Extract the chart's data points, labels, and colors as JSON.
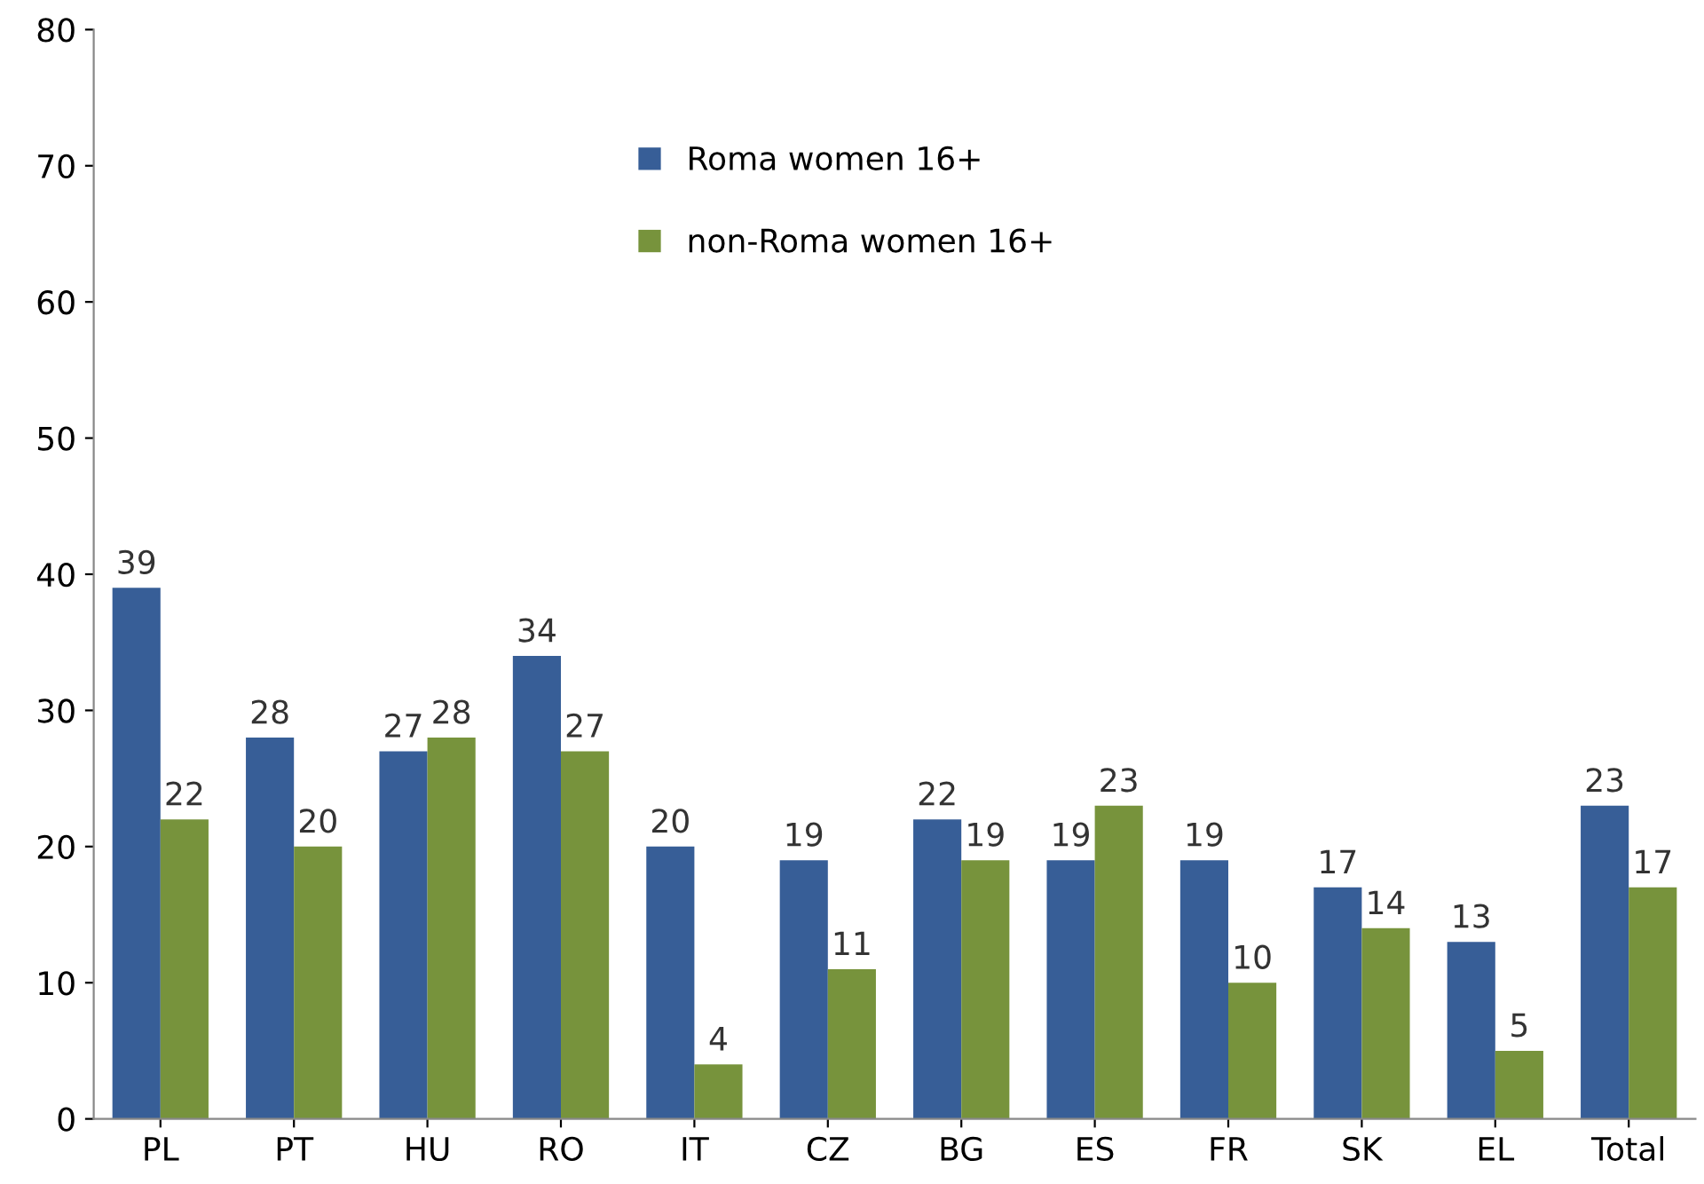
{
  "chart_data": {
    "type": "bar",
    "categories": [
      "PL",
      "PT",
      "HU",
      "RO",
      "IT",
      "CZ",
      "BG",
      "ES",
      "FR",
      "SK",
      "EL",
      "Total"
    ],
    "series": [
      {
        "name": "Roma women 16+",
        "color": "#375e97",
        "values": [
          39,
          28,
          27,
          34,
          20,
          19,
          22,
          19,
          19,
          17,
          13,
          23
        ]
      },
      {
        "name": "non-Roma women 16+",
        "color": "#77933c",
        "values": [
          22,
          20,
          28,
          27,
          4,
          11,
          19,
          23,
          10,
          14,
          5,
          17
        ]
      }
    ],
    "ylim": [
      0,
      80
    ],
    "yticks": [
      0,
      10,
      20,
      30,
      40,
      50,
      60,
      70,
      80
    ],
    "data_labels": true,
    "grid": false,
    "legend": "top"
  }
}
